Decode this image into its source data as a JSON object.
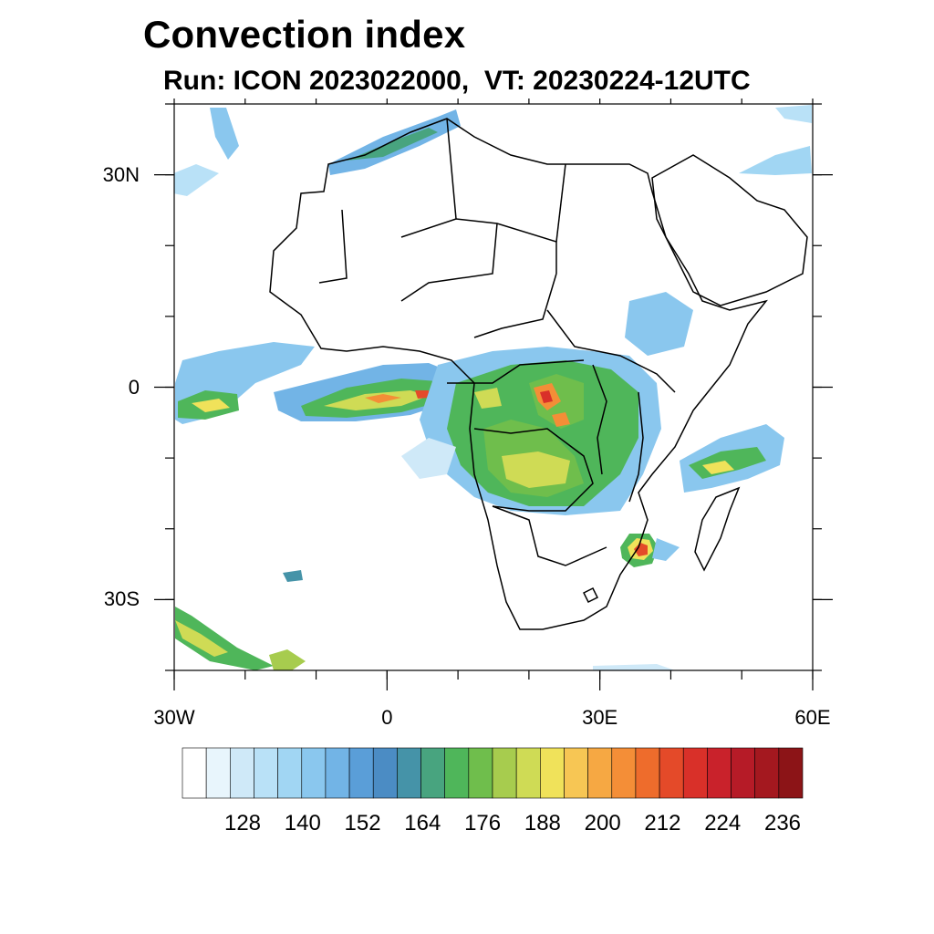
{
  "header": {
    "title": "Convection index",
    "subtitle": "Run: ICON 2023022000,  VT: 20230224-12UTC"
  },
  "map": {
    "projection": "lat-lon",
    "lon_range": [
      -30,
      60
    ],
    "lat_range": [
      -40,
      40
    ],
    "lon_ticks": [
      {
        "value": -30,
        "label": "30W"
      },
      {
        "value": 0,
        "label": "0"
      },
      {
        "value": 30,
        "label": "30E"
      },
      {
        "value": 60,
        "label": "60E"
      }
    ],
    "lat_ticks": [
      {
        "value": 30,
        "label": "30N"
      },
      {
        "value": 0,
        "label": "0"
      },
      {
        "value": -30,
        "label": "30S"
      }
    ],
    "minor_lon_step": 10,
    "minor_lat_step": 10
  },
  "colorbar": {
    "colors": [
      "#ffffff",
      "#e8f5fc",
      "#cfe9f8",
      "#b9e1f7",
      "#a1d6f3",
      "#8ac7ee",
      "#72b4e6",
      "#5a9ed8",
      "#4b8cc4",
      "#4593a8",
      "#48a47f",
      "#4fb65a",
      "#6fbe4c",
      "#a7cc4e",
      "#cfdb55",
      "#f0e25a",
      "#f7c654",
      "#f6a843",
      "#f48e37",
      "#ee6c2c",
      "#e44a29",
      "#d93029",
      "#c9222b",
      "#b61b27",
      "#a4181f",
      "#8c1417"
    ],
    "labels": [
      "128",
      "140",
      "152",
      "164",
      "176",
      "188",
      "200",
      "212",
      "224",
      "236"
    ],
    "label_bins": [
      2,
      5,
      8,
      11,
      14,
      17,
      20,
      23,
      26,
      29
    ]
  },
  "legend_field_name": "Convection index"
}
